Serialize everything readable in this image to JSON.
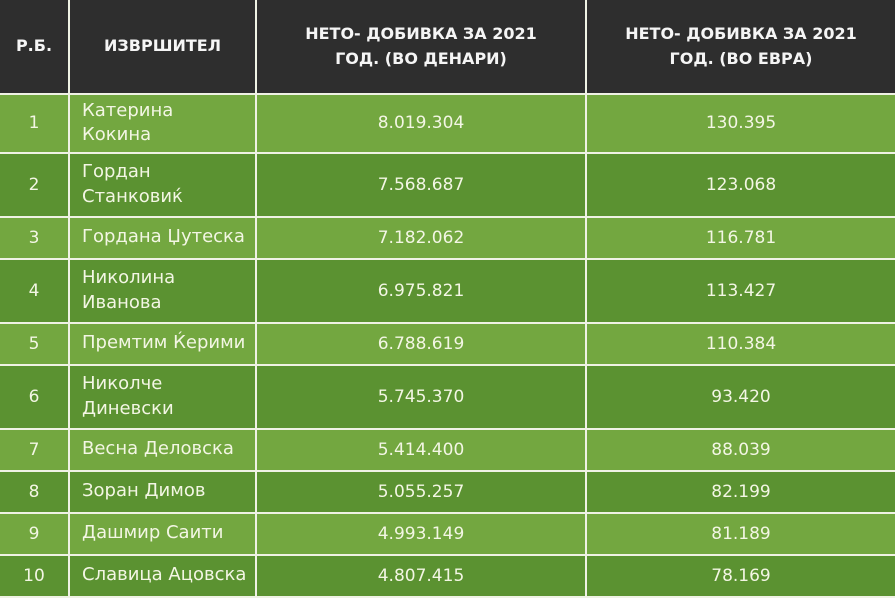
{
  "colors": {
    "header_bg": "#2e2e2e",
    "row_light": "#73a740",
    "row_dark": "#5b9231",
    "divider": "#eff2e4",
    "header_text": "#f5f5f5",
    "body_text": "#f3f6e4"
  },
  "table": {
    "columns": [
      {
        "label": "Р.Б."
      },
      {
        "label": "ИЗВРШИТЕЛ"
      },
      {
        "label": "НЕТО- ДОБИВКА ЗА 2021\nГОД. (ВО ДЕНАРИ)"
      },
      {
        "label": "НЕТО- ДОБИВКА ЗА 2021\nГОД. (ВО ЕВРА)"
      }
    ],
    "rows": [
      {
        "rank": "1",
        "name": "Катерина Кокина",
        "denari": "8.019.304",
        "evra": "130.395"
      },
      {
        "rank": "2",
        "name": "Гордан\nСтанковиќ",
        "denari": "7.568.687",
        "evra": "123.068"
      },
      {
        "rank": "3",
        "name": "Гордана Џутеска",
        "denari": "7.182.062",
        "evra": "116.781"
      },
      {
        "rank": "4",
        "name": "Николина\nИванова",
        "denari": "6.975.821",
        "evra": "113.427"
      },
      {
        "rank": "5",
        "name": "Премтим Ќерими",
        "denari": "6.788.619",
        "evra": "110.384"
      },
      {
        "rank": "6",
        "name": "Николче\nДиневски",
        "denari": "5.745.370",
        "evra": "93.420"
      },
      {
        "rank": "7",
        "name": "Весна Деловска",
        "denari": "5.414.400",
        "evra": "88.039"
      },
      {
        "rank": "8",
        "name": "Зоран Димов",
        "denari": "5.055.257",
        "evra": "82.199"
      },
      {
        "rank": "9",
        "name": "Дашмир Саити",
        "denari": "4.993.149",
        "evra": "81.189"
      },
      {
        "rank": "10",
        "name": "Славица Ацовска",
        "denari": "4.807.415",
        "evra": "78.169"
      }
    ]
  }
}
